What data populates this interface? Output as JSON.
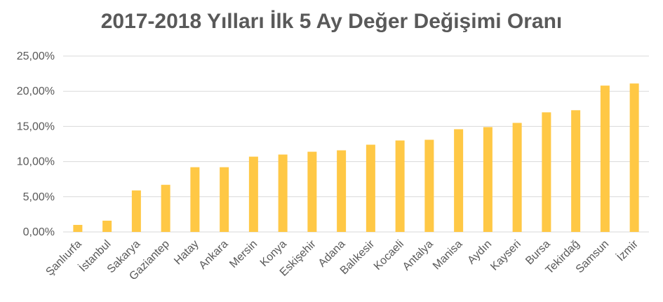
{
  "chart_data": {
    "type": "bar",
    "title": "2017-2018 Yılları İlk 5 Ay Değer Değişimi Oranı",
    "xlabel": "",
    "ylabel": "",
    "categories": [
      "Şanlıurfa",
      "İstanbul",
      "Sakarya",
      "Gaziantep",
      "Hatay",
      "Ankara",
      "Mersin",
      "Konya",
      "Eskişehir",
      "Adana",
      "Balıkesir",
      "Kocaeli",
      "Antalya",
      "Manisa",
      "Aydın",
      "Kayseri",
      "Bursa",
      "Tekirdağ",
      "Samsun",
      "İzmir"
    ],
    "values": [
      1.0,
      1.6,
      5.9,
      6.7,
      9.2,
      9.2,
      10.7,
      11.0,
      11.4,
      11.6,
      12.4,
      13.0,
      13.1,
      14.6,
      14.9,
      15.5,
      17.0,
      17.3,
      20.8,
      21.1
    ],
    "ylim": [
      0,
      25
    ],
    "yticks": [
      "0,00%",
      "5,00%",
      "10,00%",
      "15,00%",
      "20,00%",
      "25,00%"
    ],
    "grid": true,
    "legend": "none",
    "bar_color": "#FFC845",
    "grid_color": "#D9D9D9",
    "text_color": "#595959"
  }
}
